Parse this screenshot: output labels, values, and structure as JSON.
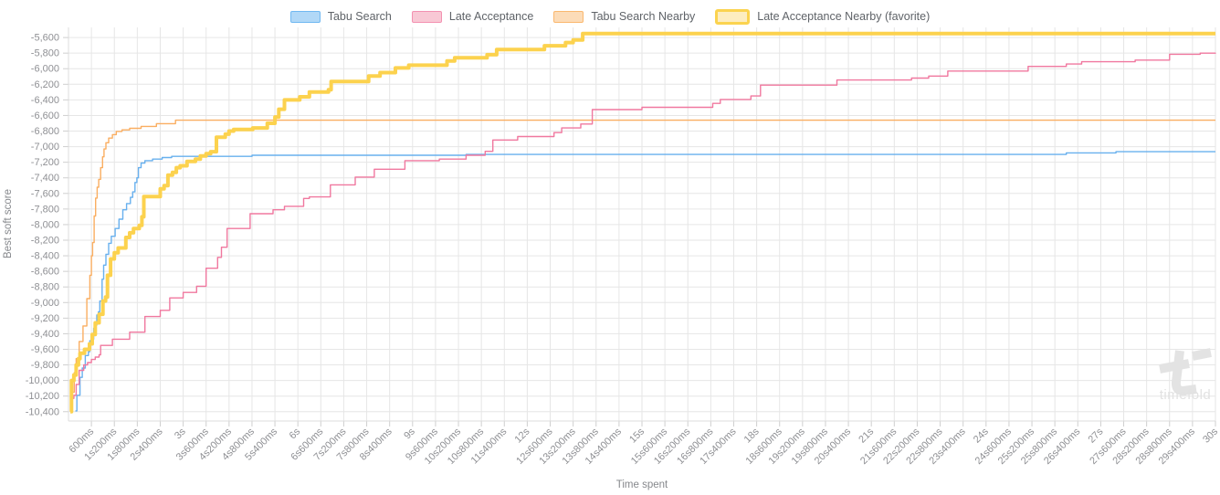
{
  "legend": {
    "items": [
      {
        "label": "Tabu Search",
        "fill": "#b1d8f7",
        "border": "#70b8f1",
        "favorite": false
      },
      {
        "label": "Late Acceptance",
        "fill": "#f8c8d5",
        "border": "#f391b1",
        "favorite": false
      },
      {
        "label": "Tabu Search Nearby",
        "fill": "#fcdcb8",
        "border": "#fab86f",
        "favorite": false
      },
      {
        "label": "Late Acceptance Nearby (favorite)",
        "fill": "#fdedc0",
        "border": "#fbd34f",
        "favorite": true
      }
    ]
  },
  "chart_data": {
    "type": "line",
    "step": "after",
    "title": "",
    "xlabel": "Time spent",
    "ylabel": "Best soft score",
    "grid": true,
    "legend_position": "top",
    "xlim_seconds": [
      0,
      30
    ],
    "ylim": [
      -10520,
      -5470
    ],
    "x_tick_start_s": 0.6,
    "x_tick_interval_s": 0.6,
    "x_tick_labels": [
      "600ms",
      "1s200ms",
      "1s800ms",
      "2s400ms",
      "3s",
      "3s600ms",
      "4s200ms",
      "4s800ms",
      "5s400ms",
      "6s",
      "6s600ms",
      "7s200ms",
      "7s800ms",
      "8s400ms",
      "9s",
      "9s600ms",
      "10s200ms",
      "10s800ms",
      "11s400ms",
      "12s",
      "12s600ms",
      "13s200ms",
      "13s800ms",
      "14s400ms",
      "15s",
      "15s600ms",
      "16s200ms",
      "16s800ms",
      "17s400ms",
      "18s",
      "18s600ms",
      "19s200ms",
      "19s800ms",
      "20s400ms",
      "21s",
      "21s600ms",
      "22s200ms",
      "22s800ms",
      "23s400ms",
      "24s",
      "24s600ms",
      "25s200ms",
      "25s800ms",
      "26s400ms",
      "27s",
      "27s600ms",
      "28s200ms",
      "28s800ms",
      "29s400ms",
      "30s"
    ],
    "y_ticks": [
      -5600,
      -5800,
      -6000,
      -6200,
      -6400,
      -6600,
      -6800,
      -7000,
      -7200,
      -7400,
      -7600,
      -7800,
      -8000,
      -8200,
      -8400,
      -8600,
      -8800,
      -9000,
      -9200,
      -9400,
      -9600,
      -9800,
      -10000,
      -10200,
      -10400
    ],
    "series": [
      {
        "name": "Tabu Search",
        "color": "#68b0ee",
        "width": 1.4,
        "points": [
          [
            0.18,
            -10390
          ],
          [
            0.22,
            -10190
          ],
          [
            0.3,
            -9960
          ],
          [
            0.36,
            -9840
          ],
          [
            0.44,
            -9680
          ],
          [
            0.52,
            -9630
          ],
          [
            0.56,
            -9490
          ],
          [
            0.62,
            -9470
          ],
          [
            0.66,
            -9330
          ],
          [
            0.7,
            -9290
          ],
          [
            0.74,
            -9160
          ],
          [
            0.78,
            -9120
          ],
          [
            0.82,
            -8980
          ],
          [
            0.88,
            -8700
          ],
          [
            0.92,
            -8520
          ],
          [
            0.98,
            -8380
          ],
          [
            1.05,
            -8240
          ],
          [
            1.12,
            -8150
          ],
          [
            1.22,
            -8050
          ],
          [
            1.32,
            -7930
          ],
          [
            1.42,
            -7810
          ],
          [
            1.52,
            -7730
          ],
          [
            1.62,
            -7650
          ],
          [
            1.68,
            -7580
          ],
          [
            1.74,
            -7460
          ],
          [
            1.79,
            -7400
          ],
          [
            1.83,
            -7270
          ],
          [
            1.9,
            -7210
          ],
          [
            2.0,
            -7180
          ],
          [
            2.2,
            -7160
          ],
          [
            2.45,
            -7140
          ],
          [
            2.7,
            -7125
          ],
          [
            4.8,
            -7110
          ],
          [
            10.4,
            -7100
          ],
          [
            26.1,
            -7080
          ],
          [
            27.4,
            -7065
          ],
          [
            30,
            -7065
          ]
        ]
      },
      {
        "name": "Tabu Search Nearby",
        "color": "#faae61",
        "width": 1.4,
        "points": [
          [
            0.05,
            -10400
          ],
          [
            0.1,
            -10150
          ],
          [
            0.15,
            -9900
          ],
          [
            0.2,
            -9720
          ],
          [
            0.28,
            -9500
          ],
          [
            0.38,
            -9300
          ],
          [
            0.48,
            -8950
          ],
          [
            0.56,
            -8650
          ],
          [
            0.6,
            -8400
          ],
          [
            0.63,
            -8230
          ],
          [
            0.67,
            -7890
          ],
          [
            0.71,
            -7660
          ],
          [
            0.75,
            -7520
          ],
          [
            0.79,
            -7420
          ],
          [
            0.84,
            -7270
          ],
          [
            0.89,
            -7130
          ],
          [
            0.93,
            -7030
          ],
          [
            0.98,
            -6950
          ],
          [
            1.05,
            -6890
          ],
          [
            1.15,
            -6845
          ],
          [
            1.25,
            -6805
          ],
          [
            1.4,
            -6785
          ],
          [
            1.6,
            -6765
          ],
          [
            1.9,
            -6740
          ],
          [
            2.3,
            -6705
          ],
          [
            2.8,
            -6660
          ],
          [
            30,
            -6660
          ]
        ]
      },
      {
        "name": "Late Acceptance",
        "color": "#f0789f",
        "width": 1.4,
        "points": [
          [
            0.06,
            -10350
          ],
          [
            0.1,
            -10230
          ],
          [
            0.14,
            -10190
          ],
          [
            0.2,
            -10050
          ],
          [
            0.28,
            -9870
          ],
          [
            0.4,
            -9800
          ],
          [
            0.5,
            -9770
          ],
          [
            0.6,
            -9730
          ],
          [
            0.7,
            -9700
          ],
          [
            0.8,
            -9670
          ],
          [
            0.84,
            -9550
          ],
          [
            1.15,
            -9470
          ],
          [
            1.6,
            -9380
          ],
          [
            2.0,
            -9180
          ],
          [
            2.4,
            -9100
          ],
          [
            2.65,
            -8940
          ],
          [
            3.0,
            -8870
          ],
          [
            3.35,
            -8790
          ],
          [
            3.6,
            -8560
          ],
          [
            3.9,
            -8420
          ],
          [
            4.0,
            -8290
          ],
          [
            4.15,
            -8050
          ],
          [
            4.75,
            -7860
          ],
          [
            5.35,
            -7810
          ],
          [
            5.65,
            -7765
          ],
          [
            6.15,
            -7665
          ],
          [
            6.3,
            -7645
          ],
          [
            6.85,
            -7490
          ],
          [
            7.5,
            -7390
          ],
          [
            8.0,
            -7290
          ],
          [
            8.8,
            -7180
          ],
          [
            9.7,
            -7160
          ],
          [
            10.4,
            -7110
          ],
          [
            10.9,
            -7060
          ],
          [
            11.1,
            -6915
          ],
          [
            11.75,
            -6870
          ],
          [
            12.7,
            -6820
          ],
          [
            12.9,
            -6760
          ],
          [
            13.4,
            -6710
          ],
          [
            13.7,
            -6525
          ],
          [
            15.0,
            -6495
          ],
          [
            16.85,
            -6445
          ],
          [
            17.05,
            -6395
          ],
          [
            17.85,
            -6350
          ],
          [
            18.1,
            -6210
          ],
          [
            20.1,
            -6145
          ],
          [
            22.05,
            -6120
          ],
          [
            22.5,
            -6095
          ],
          [
            23.0,
            -6030
          ],
          [
            25.1,
            -5970
          ],
          [
            26.1,
            -5940
          ],
          [
            26.5,
            -5910
          ],
          [
            27.9,
            -5890
          ],
          [
            28.8,
            -5815
          ],
          [
            29.6,
            -5800
          ],
          [
            30,
            -5795
          ]
        ]
      },
      {
        "name": "Late Acceptance Nearby (favorite)",
        "color": "#fcd24e",
        "width": 4,
        "points": [
          [
            0.05,
            -10400
          ],
          [
            0.08,
            -10000
          ],
          [
            0.14,
            -9930
          ],
          [
            0.2,
            -9800
          ],
          [
            0.26,
            -9720
          ],
          [
            0.3,
            -9650
          ],
          [
            0.42,
            -9600
          ],
          [
            0.55,
            -9530
          ],
          [
            0.62,
            -9410
          ],
          [
            0.7,
            -9260
          ],
          [
            0.8,
            -9150
          ],
          [
            0.9,
            -8980
          ],
          [
            0.97,
            -8930
          ],
          [
            1.02,
            -8650
          ],
          [
            1.1,
            -8440
          ],
          [
            1.2,
            -8360
          ],
          [
            1.3,
            -8300
          ],
          [
            1.5,
            -8165
          ],
          [
            1.6,
            -8105
          ],
          [
            1.7,
            -8050
          ],
          [
            1.85,
            -8010
          ],
          [
            1.92,
            -7900
          ],
          [
            1.97,
            -7640
          ],
          [
            2.4,
            -7540
          ],
          [
            2.5,
            -7500
          ],
          [
            2.6,
            -7365
          ],
          [
            2.72,
            -7330
          ],
          [
            2.82,
            -7270
          ],
          [
            2.92,
            -7245
          ],
          [
            3.1,
            -7190
          ],
          [
            3.32,
            -7160
          ],
          [
            3.45,
            -7120
          ],
          [
            3.6,
            -7090
          ],
          [
            3.72,
            -7065
          ],
          [
            3.87,
            -6880
          ],
          [
            4.1,
            -6840
          ],
          [
            4.2,
            -6800
          ],
          [
            4.32,
            -6780
          ],
          [
            4.82,
            -6760
          ],
          [
            5.2,
            -6700
          ],
          [
            5.4,
            -6620
          ],
          [
            5.5,
            -6520
          ],
          [
            5.65,
            -6400
          ],
          [
            6.05,
            -6360
          ],
          [
            6.3,
            -6300
          ],
          [
            6.8,
            -6270
          ],
          [
            6.87,
            -6165
          ],
          [
            7.85,
            -6095
          ],
          [
            8.15,
            -6050
          ],
          [
            8.55,
            -5990
          ],
          [
            8.9,
            -5955
          ],
          [
            9.9,
            -5900
          ],
          [
            10.1,
            -5860
          ],
          [
            10.95,
            -5820
          ],
          [
            11.2,
            -5755
          ],
          [
            12.45,
            -5705
          ],
          [
            13.0,
            -5665
          ],
          [
            13.2,
            -5630
          ],
          [
            13.45,
            -5550
          ],
          [
            30,
            -5550
          ]
        ]
      }
    ]
  },
  "watermark": {
    "text": "timefold"
  }
}
